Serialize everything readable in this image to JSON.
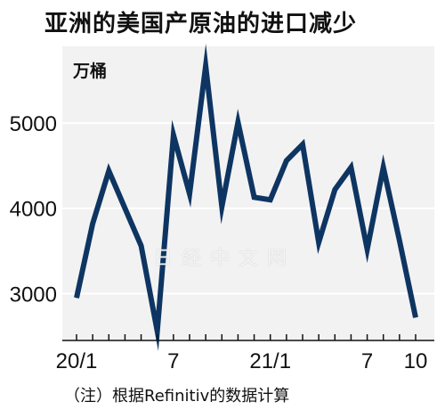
{
  "title": "亚洲的美国产原油的进口减少",
  "note": "（注）根据Refinitiv的数据计算",
  "watermark": "日经中文网",
  "colors": {
    "line": "#0e3562",
    "plot_background": "#f2f2f2",
    "grid": "#ffffff"
  },
  "chart_data": {
    "type": "line",
    "title": "亚洲的美国产原油的进口减少",
    "ylabel": "万桶",
    "ylim": [
      2450,
      5900
    ],
    "yticks": [
      3000,
      4000,
      5000
    ],
    "grid": true,
    "x_ticks": [
      {
        "index": 0,
        "label": "20/1"
      },
      {
        "index": 6,
        "label": "7"
      },
      {
        "index": 12,
        "label": "21/1"
      },
      {
        "index": 18,
        "label": "7"
      },
      {
        "index": 21,
        "label": "10"
      }
    ],
    "x": [
      "2020-01",
      "2020-02",
      "2020-03",
      "2020-04",
      "2020-05",
      "2020-06",
      "2020-07",
      "2020-08",
      "2020-09",
      "2020-10",
      "2020-11",
      "2020-12",
      "2021-01",
      "2021-02",
      "2021-03",
      "2021-04",
      "2021-05",
      "2021-06",
      "2021-07",
      "2021-08",
      "2021-09",
      "2021-10"
    ],
    "series": [
      {
        "values": [
          2950,
          3820,
          4440,
          4000,
          3560,
          2560,
          4860,
          4170,
          5670,
          4020,
          5010,
          4130,
          4100,
          4560,
          4750,
          3600,
          4220,
          4480,
          3520,
          4480,
          3620,
          2720
        ]
      }
    ]
  }
}
